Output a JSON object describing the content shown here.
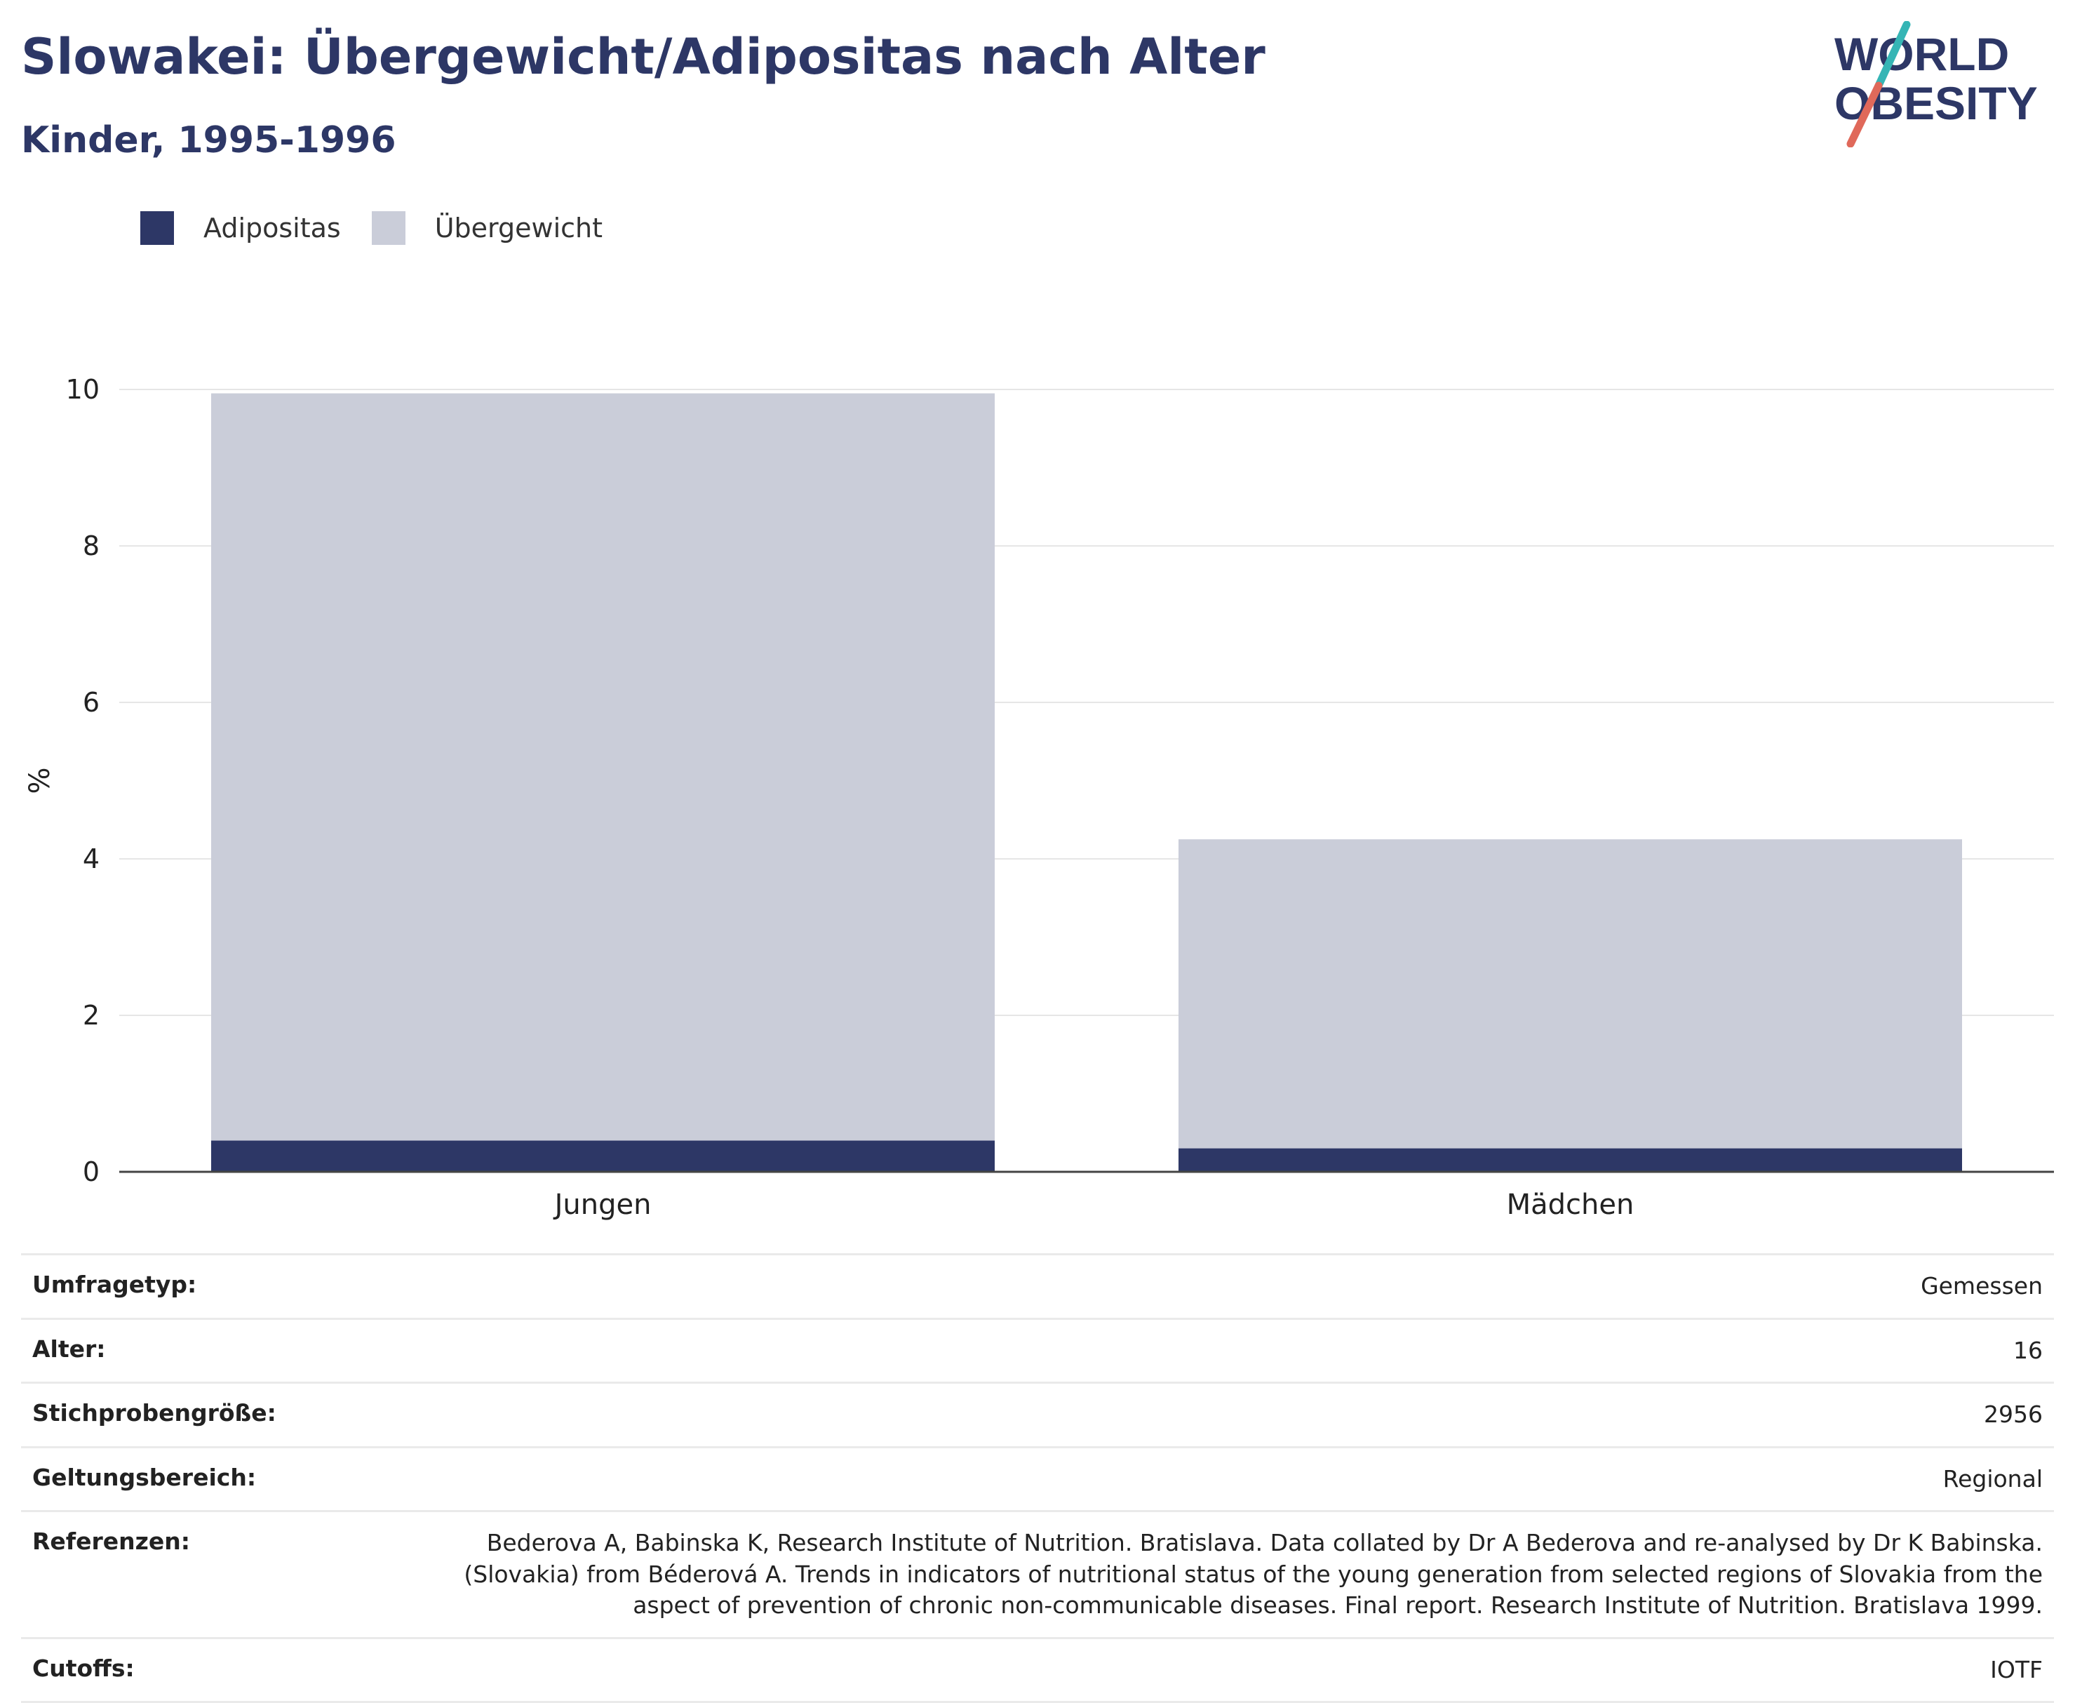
{
  "header": {
    "title": "Slowakei: Übergewicht/Adipositas nach Alter",
    "subtitle": "Kinder, 1995-1996"
  },
  "logo": {
    "line1": "WORLD",
    "line2": "OBESITY",
    "colors": {
      "text": "#2d3766",
      "slash_top": "#35b5b5",
      "slash_bottom": "#e0695a"
    }
  },
  "legend": [
    {
      "label": "Adipositas",
      "color": "#2d3766"
    },
    {
      "label": "Übergewicht",
      "color": "#cacdd9"
    }
  ],
  "chart_data": {
    "type": "bar",
    "stacked": true,
    "categories": [
      "Jungen",
      "Mädchen"
    ],
    "series": [
      {
        "name": "Adipositas",
        "values": [
          0.4,
          0.3
        ],
        "color": "#2d3766"
      },
      {
        "name": "Übergewicht",
        "values": [
          9.55,
          3.95
        ],
        "color": "#cacdd9"
      }
    ],
    "ylabel": "%",
    "ylim": [
      0,
      10
    ],
    "yticks": [
      0,
      2,
      4,
      6,
      8,
      10
    ],
    "grid": true,
    "legend_position": "top-left"
  },
  "info": [
    {
      "key": "Umfragetyp:",
      "value": "Gemessen"
    },
    {
      "key": "Alter:",
      "value": "16"
    },
    {
      "key": "Stichprobengröße:",
      "value": "2956"
    },
    {
      "key": "Geltungsbereich:",
      "value": "Regional"
    },
    {
      "key": "Referenzen:",
      "value": "Bederova A, Babinska K, Research Institute of Nutrition. Bratislava. Data collated by Dr A Bederova and re-analysed by Dr K Babinska. (Slovakia) from Béderová A. Trends in indicators of nutritional status of the young generation from selected regions of Slovakia from the aspect of prevention of chronic non-communicable diseases. Final report. Research Institute of Nutrition. Bratislava 1999."
    },
    {
      "key": "Cutoffs:",
      "value": "IOTF"
    }
  ]
}
